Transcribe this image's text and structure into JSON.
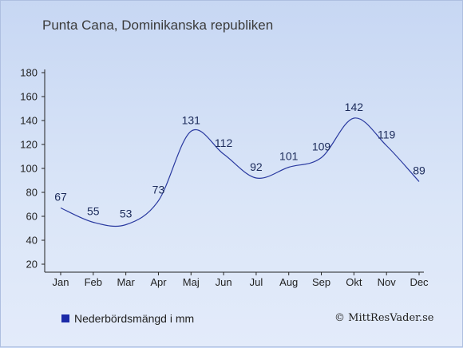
{
  "title": "Punta Cana, Dominikanska republiken",
  "legend": {
    "label": "Nederbördsmängd i mm",
    "color": "#1b2aa8"
  },
  "credit": "© MittResVader.se",
  "colors": {
    "line": "#2a3aa0",
    "axis": "#222222",
    "label": "#1b2a5a"
  },
  "chart_data": {
    "type": "line",
    "title": "Punta Cana, Dominikanska republiken",
    "xlabel": "",
    "ylabel": "",
    "categories": [
      "Jan",
      "Feb",
      "Mar",
      "Apr",
      "Maj",
      "Jun",
      "Jul",
      "Aug",
      "Sep",
      "Okt",
      "Nov",
      "Dec"
    ],
    "series": [
      {
        "name": "Nederbördsmängd i mm",
        "values": [
          67,
          55,
          53,
          73,
          131,
          112,
          92,
          101,
          109,
          142,
          119,
          89
        ]
      }
    ],
    "ylim": [
      20,
      180
    ],
    "yticks": [
      20,
      40,
      60,
      80,
      100,
      120,
      140,
      160,
      180
    ],
    "grid": false,
    "legend_position": "bottom-left"
  }
}
